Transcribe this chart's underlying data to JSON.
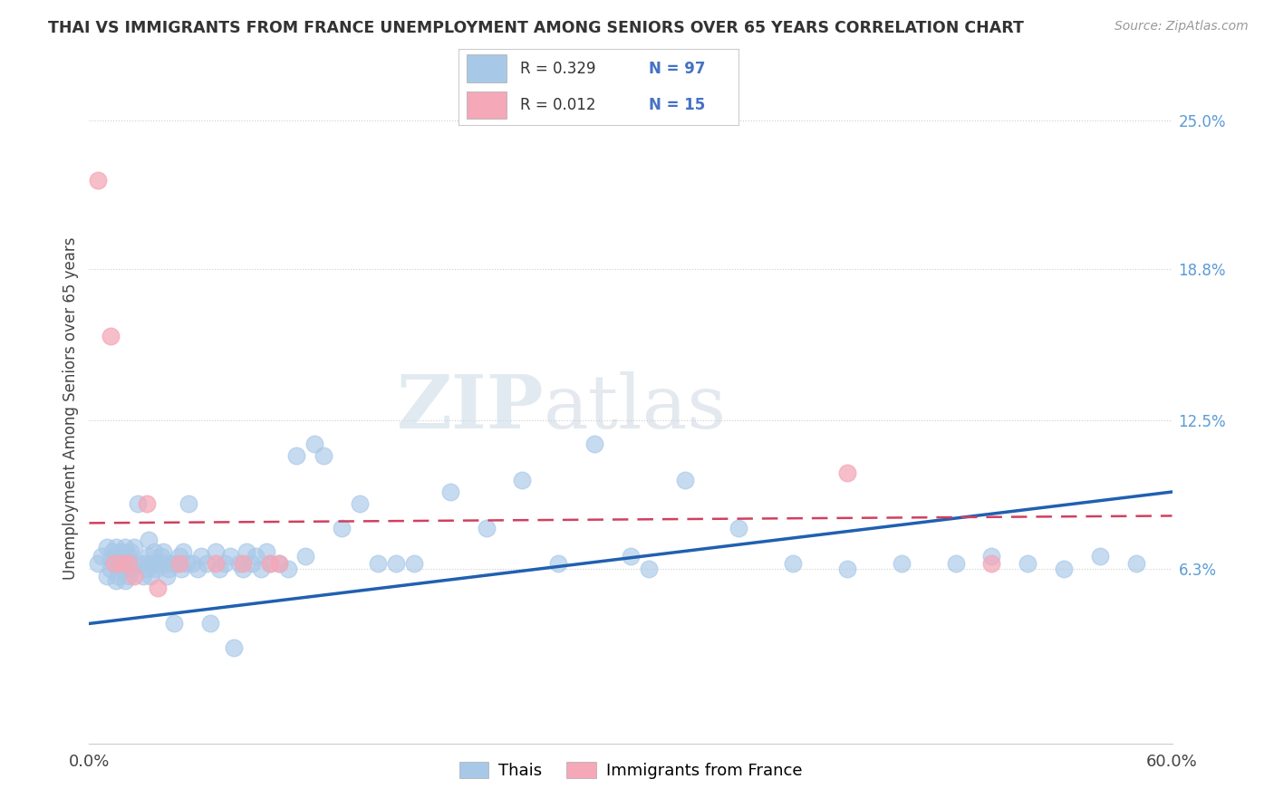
{
  "title": "THAI VS IMMIGRANTS FROM FRANCE UNEMPLOYMENT AMONG SENIORS OVER 65 YEARS CORRELATION CHART",
  "source": "Source: ZipAtlas.com",
  "ylabel_label": "Unemployment Among Seniors over 65 years",
  "right_yticks": [
    "25.0%",
    "18.8%",
    "12.5%",
    "6.3%"
  ],
  "right_ytick_vals": [
    0.25,
    0.188,
    0.125,
    0.063
  ],
  "xlim": [
    0.0,
    0.6
  ],
  "ylim": [
    -0.01,
    0.27
  ],
  "thai_R": "0.329",
  "thai_N": "97",
  "france_R": "0.012",
  "france_N": "15",
  "thai_color": "#a8c8e8",
  "france_color": "#f4a8b8",
  "thai_line_color": "#2060b0",
  "france_line_color": "#d04060",
  "watermark_zip": "ZIP",
  "watermark_atlas": "atlas",
  "thai_scatter_x": [
    0.005,
    0.007,
    0.01,
    0.01,
    0.012,
    0.012,
    0.013,
    0.014,
    0.015,
    0.015,
    0.016,
    0.016,
    0.017,
    0.018,
    0.018,
    0.019,
    0.02,
    0.02,
    0.021,
    0.022,
    0.022,
    0.023,
    0.023,
    0.025,
    0.025,
    0.027,
    0.028,
    0.03,
    0.031,
    0.032,
    0.033,
    0.033,
    0.034,
    0.035,
    0.036,
    0.037,
    0.038,
    0.04,
    0.041,
    0.042,
    0.043,
    0.044,
    0.046,
    0.047,
    0.048,
    0.05,
    0.051,
    0.052,
    0.054,
    0.055,
    0.057,
    0.06,
    0.062,
    0.065,
    0.067,
    0.07,
    0.072,
    0.075,
    0.078,
    0.08,
    0.083,
    0.085,
    0.087,
    0.09,
    0.092,
    0.095,
    0.098,
    0.1,
    0.105,
    0.11,
    0.115,
    0.12,
    0.125,
    0.13,
    0.14,
    0.15,
    0.16,
    0.17,
    0.18,
    0.2,
    0.22,
    0.24,
    0.26,
    0.28,
    0.3,
    0.31,
    0.33,
    0.36,
    0.39,
    0.42,
    0.45,
    0.48,
    0.5,
    0.52,
    0.54,
    0.56,
    0.58
  ],
  "thai_scatter_y": [
    0.065,
    0.068,
    0.06,
    0.072,
    0.063,
    0.067,
    0.07,
    0.065,
    0.058,
    0.072,
    0.06,
    0.065,
    0.068,
    0.063,
    0.07,
    0.065,
    0.058,
    0.072,
    0.065,
    0.06,
    0.068,
    0.063,
    0.07,
    0.065,
    0.072,
    0.09,
    0.065,
    0.06,
    0.065,
    0.063,
    0.068,
    0.075,
    0.06,
    0.065,
    0.07,
    0.063,
    0.065,
    0.068,
    0.07,
    0.065,
    0.06,
    0.063,
    0.065,
    0.04,
    0.065,
    0.068,
    0.063,
    0.07,
    0.065,
    0.09,
    0.065,
    0.063,
    0.068,
    0.065,
    0.04,
    0.07,
    0.063,
    0.065,
    0.068,
    0.03,
    0.065,
    0.063,
    0.07,
    0.065,
    0.068,
    0.063,
    0.07,
    0.065,
    0.065,
    0.063,
    0.11,
    0.068,
    0.115,
    0.11,
    0.08,
    0.09,
    0.065,
    0.065,
    0.065,
    0.095,
    0.08,
    0.1,
    0.065,
    0.115,
    0.068,
    0.063,
    0.1,
    0.08,
    0.065,
    0.063,
    0.065,
    0.065,
    0.068,
    0.065,
    0.063,
    0.068,
    0.065
  ],
  "france_scatter_x": [
    0.005,
    0.012,
    0.014,
    0.018,
    0.022,
    0.025,
    0.032,
    0.038,
    0.05,
    0.07,
    0.085,
    0.1,
    0.105,
    0.42,
    0.5
  ],
  "france_scatter_y": [
    0.225,
    0.16,
    0.065,
    0.065,
    0.065,
    0.06,
    0.09,
    0.055,
    0.065,
    0.065,
    0.065,
    0.065,
    0.065,
    0.103,
    0.065
  ],
  "thai_trend_x0": 0.0,
  "thai_trend_y0": 0.04,
  "thai_trend_x1": 0.6,
  "thai_trend_y1": 0.095,
  "france_trend_x0": 0.0,
  "france_trend_y0": 0.082,
  "france_trend_x1": 0.6,
  "france_trend_y1": 0.085
}
